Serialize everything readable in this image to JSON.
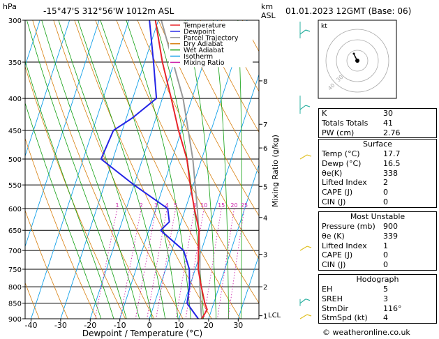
{
  "header": {
    "hpa_label": "hPa",
    "location": "-15°47'S 312°56'W 1012m ASL",
    "km_label": "km",
    "asl_label": "ASL",
    "datetime": "01.01.2023 12GMT (Base: 06)"
  },
  "axes": {
    "xlabel": "Dewpoint / Temperature (°C)",
    "mixing_ratio_label": "Mixing Ratio (g/kg)",
    "lcl_label": "LCL"
  },
  "legend": {
    "items": [
      {
        "label": "Temperature",
        "color": "#e8242a"
      },
      {
        "label": "Dewpoint",
        "color": "#2424e6"
      },
      {
        "label": "Parcel Trajectory",
        "color": "#999999"
      },
      {
        "label": "Dry Adiabat",
        "color": "#d88010"
      },
      {
        "label": "Wet Adiabat",
        "color": "#11a011"
      },
      {
        "label": "Isotherm",
        "color": "#11a0e8"
      },
      {
        "label": "Mixing Ratio",
        "color": "#cc22aa"
      }
    ]
  },
  "chart_data": {
    "type": "skewt",
    "pressure_levels": [
      300,
      350,
      400,
      450,
      500,
      550,
      600,
      650,
      700,
      750,
      800,
      850,
      900
    ],
    "x_ticks": [
      -40,
      -30,
      -20,
      -10,
      0,
      10,
      20,
      30
    ],
    "km_ticks": [
      {
        "label": "8",
        "p": 375
      },
      {
        "label": "7",
        "p": 440
      },
      {
        "label": "6",
        "p": 480
      },
      {
        "label": "5",
        "p": 553
      },
      {
        "label": "4",
        "p": 620
      },
      {
        "label": "3",
        "p": 710
      },
      {
        "label": "2",
        "p": 800
      },
      {
        "label": "1",
        "p": 890
      }
    ],
    "mixing_ratio_values": [
      "1",
      "2",
      "3",
      "4",
      "5",
      "8",
      "10",
      "15",
      "20",
      "25"
    ],
    "temperature": [
      {
        "p": 300,
        "t": -31
      },
      {
        "p": 350,
        "t": -24
      },
      {
        "p": 400,
        "t": -17
      },
      {
        "p": 450,
        "t": -11
      },
      {
        "p": 500,
        "t": -5
      },
      {
        "p": 550,
        "t": -1
      },
      {
        "p": 600,
        "t": 3
      },
      {
        "p": 650,
        "t": 7
      },
      {
        "p": 700,
        "t": 9
      },
      {
        "p": 750,
        "t": 11
      },
      {
        "p": 800,
        "t": 14
      },
      {
        "p": 850,
        "t": 17
      },
      {
        "p": 870,
        "t": 18.5
      },
      {
        "p": 900,
        "t": 17.7
      }
    ],
    "dewpoint": [
      {
        "p": 300,
        "t": -33
      },
      {
        "p": 350,
        "t": -27
      },
      {
        "p": 400,
        "t": -22
      },
      {
        "p": 430,
        "t": -28
      },
      {
        "p": 450,
        "t": -33
      },
      {
        "p": 500,
        "t": -34
      },
      {
        "p": 550,
        "t": -20
      },
      {
        "p": 600,
        "t": -6
      },
      {
        "p": 630,
        "t": -4
      },
      {
        "p": 650,
        "t": -6
      },
      {
        "p": 700,
        "t": 4
      },
      {
        "p": 750,
        "t": 8
      },
      {
        "p": 800,
        "t": 10
      },
      {
        "p": 850,
        "t": 11
      },
      {
        "p": 900,
        "t": 16.5
      }
    ],
    "parcel": [
      {
        "p": 300,
        "t": -29
      },
      {
        "p": 400,
        "t": -13
      },
      {
        "p": 500,
        "t": -3
      },
      {
        "p": 600,
        "t": 4
      },
      {
        "p": 700,
        "t": 9.5
      },
      {
        "p": 800,
        "t": 13.5
      },
      {
        "p": 880,
        "t": 16.8
      },
      {
        "p": 900,
        "t": 17.7
      }
    ],
    "xlim": [
      -42,
      37
    ],
    "ylim": [
      300,
      900
    ]
  },
  "hodograph": {
    "label": "kt",
    "ring_labels": [
      "40",
      "30"
    ]
  },
  "indices": {
    "top": [
      {
        "k": "K",
        "v": "30"
      },
      {
        "k": "Totals Totals",
        "v": "41"
      },
      {
        "k": "PW (cm)",
        "v": "2.76"
      }
    ],
    "surface": {
      "title": "Surface",
      "rows": [
        {
          "k": "Temp (°C)",
          "v": "17.7"
        },
        {
          "k": "Dewp (°C)",
          "v": "16.5"
        },
        {
          "k": "θe(K)",
          "v": "338"
        },
        {
          "k": "Lifted Index",
          "v": "2"
        },
        {
          "k": "CAPE (J)",
          "v": "0"
        },
        {
          "k": "CIN (J)",
          "v": "0"
        }
      ]
    },
    "most_unstable": {
      "title": "Most Unstable",
      "rows": [
        {
          "k": "Pressure (mb)",
          "v": "900"
        },
        {
          "k": "θe (K)",
          "v": "339"
        },
        {
          "k": "Lifted Index",
          "v": "1"
        },
        {
          "k": "CAPE (J)",
          "v": "0"
        },
        {
          "k": "CIN (J)",
          "v": "0"
        }
      ]
    },
    "hodograph": {
      "title": "Hodograph",
      "rows": [
        {
          "k": "EH",
          "v": "5"
        },
        {
          "k": "SREH",
          "v": "3"
        },
        {
          "k": "StmDir",
          "v": "116°"
        },
        {
          "k": "StmSpd (kt)",
          "v": "4"
        }
      ]
    }
  },
  "footer": {
    "copyright": "© weatheronline.co.uk"
  }
}
